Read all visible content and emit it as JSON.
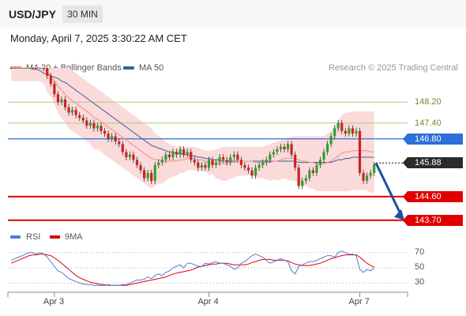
{
  "header": {
    "symbol": "USD/JPY",
    "timeframe": "30 MIN",
    "datetime": "Monday, April 7, 2025 3:30:22 AM CET"
  },
  "legend": {
    "ma20_label": "MA 20 + Bollinger Bands",
    "ma50_label": "MA 50",
    "research": "Research © 2025 Trading Central",
    "ma20_color": "#f28c8c",
    "ma50_color": "#3a5fa0"
  },
  "rsi_legend": {
    "rsi_label": "RSI",
    "ma_label": "9MA",
    "rsi_color": "#4a7fd6",
    "ma_color": "#e00000"
  },
  "colors": {
    "up": "#2ea02e",
    "down": "#cc2222",
    "band": "#fbdada"
  },
  "chart_data": [
    {
      "type": "candlestick",
      "ylim": [
        143.3,
        149.2
      ],
      "x_tick_labels": [
        "Apr 3",
        "Apr 4",
        "Apr 7"
      ],
      "x_tick_index": [
        12,
        55,
        97
      ],
      "levels": [
        {
          "value": 148.2,
          "label": "148.20",
          "style": "plain",
          "color": "#a6cf7a"
        },
        {
          "value": 147.4,
          "label": "147.40",
          "style": "plain",
          "color": "#a6cf7a"
        },
        {
          "value": 146.8,
          "label": "146.80",
          "style": "blue",
          "color": "#2e6fd8"
        },
        {
          "value": 145.88,
          "label": "145.88",
          "style": "dark",
          "color": "#2b2b2b"
        },
        {
          "value": 144.6,
          "label": "144.60",
          "style": "red",
          "color": "#e00000"
        },
        {
          "value": 143.7,
          "label": "143.70",
          "style": "red",
          "color": "#e00000"
        }
      ],
      "close": [
        149.6,
        149.7,
        149.75,
        149.8,
        149.85,
        149.9,
        149.85,
        149.8,
        149.8,
        149.5,
        149.2,
        148.9,
        148.5,
        148.2,
        148.3,
        148.0,
        147.8,
        147.9,
        147.7,
        147.6,
        147.5,
        147.3,
        147.4,
        147.2,
        147.3,
        147.1,
        147.0,
        146.8,
        146.9,
        146.7,
        146.6,
        146.3,
        146.1,
        146.2,
        146.0,
        145.8,
        145.6,
        145.3,
        145.5,
        145.2,
        145.8,
        145.9,
        146.0,
        146.2,
        146.1,
        146.3,
        146.2,
        146.4,
        146.2,
        146.3,
        146.0,
        145.9,
        145.7,
        145.8,
        145.7,
        146.0,
        145.8,
        145.9,
        146.1,
        146.0,
        145.9,
        146.1,
        146.2,
        146.0,
        145.8,
        145.7,
        145.6,
        145.4,
        145.7,
        145.8,
        145.9,
        146.0,
        146.2,
        146.3,
        146.4,
        146.5,
        146.4,
        146.6,
        146.2,
        145.7,
        145.0,
        145.2,
        145.3,
        145.6,
        145.5,
        145.8,
        146.0,
        146.3,
        146.6,
        146.9,
        147.2,
        147.4,
        147.1,
        147.0,
        147.2,
        147.0,
        147.1,
        145.5,
        145.2,
        145.4,
        145.5,
        145.8
      ],
      "ma20": [
        149.55,
        149.55,
        149.55,
        149.6,
        149.6,
        149.6,
        149.6,
        149.55,
        149.55,
        149.5,
        149.35,
        149.2,
        149.0,
        148.8,
        148.65,
        148.5,
        148.35,
        148.25,
        148.15,
        148.05,
        147.95,
        147.85,
        147.75,
        147.6,
        147.55,
        147.45,
        147.35,
        147.25,
        147.15,
        147.05,
        146.95,
        146.85,
        146.75,
        146.65,
        146.55,
        146.45,
        146.35,
        146.25,
        146.15,
        146.05,
        146.0,
        146.0,
        145.95,
        145.95,
        145.95,
        145.95,
        145.95,
        146.0,
        146.0,
        146.05,
        146.05,
        146.05,
        146.0,
        146.0,
        145.95,
        145.9,
        145.9,
        145.85,
        145.85,
        145.85,
        145.85,
        145.9,
        145.9,
        145.95,
        145.95,
        145.95,
        145.95,
        145.95,
        145.9,
        145.9,
        145.9,
        145.9,
        145.9,
        145.95,
        145.95,
        146.0,
        146.05,
        146.05,
        146.05,
        146.05,
        146.0,
        145.95,
        145.95,
        145.9,
        145.9,
        145.85,
        145.85,
        145.85,
        145.9,
        145.95,
        146.05,
        146.15,
        146.25,
        146.3,
        146.3,
        146.35,
        146.35,
        146.35,
        146.35,
        146.35,
        146.3,
        146.3
      ],
      "ma50": [
        149.5,
        149.5,
        149.5,
        149.5,
        149.5,
        149.5,
        149.45,
        149.45,
        149.4,
        149.3,
        149.25,
        149.2,
        149.15,
        149.1,
        149.0,
        148.95,
        148.85,
        148.75,
        148.65,
        148.55,
        148.45,
        148.35,
        148.25,
        148.15,
        148.05,
        147.95,
        147.85,
        147.75,
        147.65,
        147.55,
        147.45,
        147.35,
        147.25,
        147.15,
        147.05,
        146.95,
        146.85,
        146.75,
        146.65,
        146.55,
        146.5,
        146.45,
        146.4,
        146.35,
        146.3,
        146.3,
        146.25,
        146.25,
        146.2,
        146.2,
        146.15,
        146.15,
        146.1,
        146.1,
        146.05,
        146.05,
        146.0,
        146.0,
        146.0,
        145.95,
        145.95,
        145.95,
        145.95,
        145.95,
        145.95,
        145.95,
        145.95,
        145.95,
        145.95,
        145.95,
        145.95,
        145.95,
        145.95,
        145.95,
        145.95,
        145.95,
        145.95,
        145.95,
        145.95,
        145.95,
        145.9,
        145.9,
        145.9,
        145.9,
        145.9,
        145.9,
        145.9,
        145.9,
        145.9,
        145.9,
        145.95,
        146.0,
        146.0,
        146.05,
        146.05,
        146.1,
        146.1,
        146.1,
        146.1,
        146.1,
        146.1,
        146.1
      ],
      "band_upper": [
        150.1,
        150.1,
        150.1,
        150.1,
        150.1,
        150.1,
        150.1,
        150.1,
        150.1,
        150.1,
        150.1,
        150.0,
        149.9,
        149.8,
        149.7,
        149.6,
        149.5,
        149.4,
        149.3,
        149.2,
        149.1,
        149.0,
        148.9,
        148.8,
        148.7,
        148.6,
        148.5,
        148.4,
        148.3,
        148.2,
        148.1,
        148.0,
        147.9,
        147.8,
        147.7,
        147.6,
        147.5,
        147.4,
        147.3,
        147.2,
        147.0,
        146.9,
        146.8,
        146.7,
        146.6,
        146.55,
        146.5,
        146.5,
        146.5,
        146.5,
        146.5,
        146.5,
        146.45,
        146.4,
        146.35,
        146.35,
        146.35,
        146.4,
        146.45,
        146.5,
        146.5,
        146.5,
        146.5,
        146.5,
        146.5,
        146.5,
        146.5,
        146.5,
        146.5,
        146.5,
        146.5,
        146.55,
        146.6,
        146.65,
        146.7,
        146.75,
        146.8,
        146.85,
        146.9,
        146.9,
        146.9,
        146.9,
        146.9,
        146.9,
        146.9,
        146.9,
        146.9,
        146.9,
        147.0,
        147.1,
        147.3,
        147.5,
        147.7,
        147.8,
        147.8,
        147.85,
        147.85,
        147.85,
        147.85,
        147.85,
        147.85,
        147.85
      ],
      "band_lower": [
        149.0,
        149.0,
        149.0,
        149.0,
        149.0,
        149.0,
        149.0,
        149.0,
        149.0,
        148.9,
        148.6,
        148.4,
        148.1,
        147.8,
        147.6,
        147.4,
        147.2,
        147.1,
        147.0,
        146.9,
        146.8,
        146.7,
        146.6,
        146.4,
        146.4,
        146.3,
        146.2,
        146.1,
        146.0,
        145.9,
        145.8,
        145.7,
        145.6,
        145.5,
        145.4,
        145.3,
        145.2,
        145.1,
        145.0,
        144.9,
        145.0,
        145.1,
        145.1,
        145.2,
        145.3,
        145.35,
        145.4,
        145.5,
        145.5,
        145.6,
        145.6,
        145.6,
        145.55,
        145.6,
        145.55,
        145.45,
        145.45,
        145.3,
        145.25,
        145.2,
        145.2,
        145.3,
        145.3,
        145.4,
        145.4,
        145.4,
        145.4,
        145.4,
        145.3,
        145.3,
        145.3,
        145.25,
        145.2,
        145.25,
        145.2,
        145.25,
        145.3,
        145.25,
        145.2,
        145.2,
        145.1,
        145.0,
        145.0,
        144.9,
        144.9,
        144.8,
        144.8,
        144.8,
        144.8,
        144.8,
        144.8,
        144.8,
        144.8,
        144.8,
        144.8,
        144.85,
        144.85,
        144.85,
        144.85,
        144.85,
        144.75,
        144.75
      ]
    },
    {
      "type": "line",
      "name": "rsi",
      "ylim": [
        20,
        78
      ],
      "y_ticks": [
        70,
        50,
        30
      ],
      "rsi": [
        60,
        62,
        64,
        66,
        68,
        70,
        70,
        68,
        70,
        68,
        64,
        58,
        52,
        46,
        44,
        40,
        36,
        34,
        32,
        30,
        29,
        28,
        28,
        27,
        27,
        27,
        27,
        28,
        27,
        27,
        27,
        28,
        28,
        30,
        32,
        34,
        34,
        35,
        38,
        36,
        40,
        42,
        40,
        44,
        46,
        50,
        52,
        54,
        50,
        56,
        56,
        54,
        52,
        52,
        56,
        55,
        57,
        58,
        56,
        56,
        54,
        52,
        48,
        50,
        56,
        58,
        62,
        66,
        68,
        66,
        64,
        60,
        56,
        58,
        60,
        62,
        60,
        58,
        46,
        42,
        52,
        54,
        56,
        58,
        58,
        60,
        62,
        64,
        66,
        66,
        64,
        70,
        72,
        70,
        68,
        68,
        66,
        48,
        44,
        48,
        46,
        50
      ],
      "ma9": [
        56,
        58,
        60,
        62,
        64,
        66,
        67,
        67,
        68,
        68,
        67,
        66,
        63,
        60,
        56,
        52,
        48,
        44,
        40,
        37,
        35,
        33,
        31,
        30,
        29,
        28,
        28,
        27,
        27,
        27,
        27,
        27,
        27,
        28,
        29,
        30,
        31,
        32,
        33,
        34,
        35,
        36,
        37,
        38,
        40,
        42,
        43,
        44,
        45,
        46,
        47,
        49,
        51,
        52,
        53,
        54,
        55,
        55,
        56,
        56,
        56,
        55,
        54,
        54,
        54,
        54,
        55,
        57,
        58,
        60,
        61,
        61,
        61,
        60,
        60,
        60,
        60,
        59,
        57,
        55,
        54,
        53,
        53,
        53,
        54,
        55,
        56,
        58,
        60,
        62,
        63,
        65,
        66,
        67,
        67,
        67,
        67,
        64,
        60,
        56,
        53,
        51
      ]
    }
  ]
}
